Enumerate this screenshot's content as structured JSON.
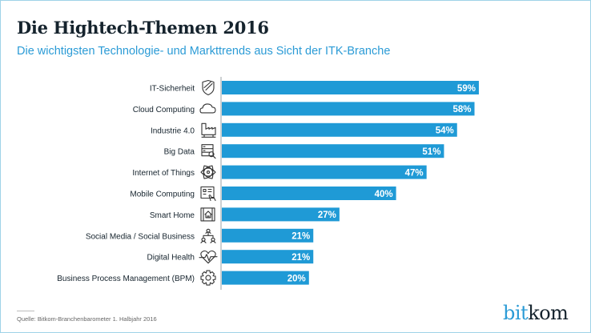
{
  "title": "Die Hightech-Themen 2016",
  "subtitle": "Die wichtigsten Technologie- und Markttrends aus Sicht der ITK-Branche",
  "source": "Quelle: Bitkom-Branchenbarometer 1. Halbjahr 2016",
  "logo": {
    "part1": "bit",
    "part2": "kom"
  },
  "colors": {
    "bar": "#1f9ad6",
    "text": "#15232d",
    "accent": "#2b9bd6"
  },
  "chart_data": {
    "type": "bar",
    "orientation": "horizontal",
    "title": "Die Hightech-Themen 2016",
    "subtitle": "Die wichtigsten Technologie- und Markttrends aus Sicht der ITK-Branche",
    "xlabel": "",
    "ylabel": "",
    "unit": "%",
    "xlim": [
      0,
      100
    ],
    "grid": false,
    "categories": [
      "IT-Sicherheit",
      "Cloud Computing",
      "Industrie 4.0",
      "Big Data",
      "Internet of Things",
      "Mobile Computing",
      "Smart Home",
      "Social Media / Social Business",
      "Digital Health",
      "Business Process Management (BPM)"
    ],
    "icons": [
      "shield-icon",
      "cloud-icon",
      "factory-icon",
      "server-search-icon",
      "atom-icon",
      "tablet-touch-icon",
      "smart-home-icon",
      "network-people-icon",
      "heart-pulse-icon",
      "gear-icon"
    ],
    "values": [
      59,
      58,
      54,
      51,
      47,
      40,
      27,
      21,
      21,
      20
    ],
    "labels": [
      "59%",
      "58%",
      "54%",
      "51%",
      "47%",
      "40%",
      "27%",
      "21%",
      "21%",
      "20%"
    ]
  }
}
